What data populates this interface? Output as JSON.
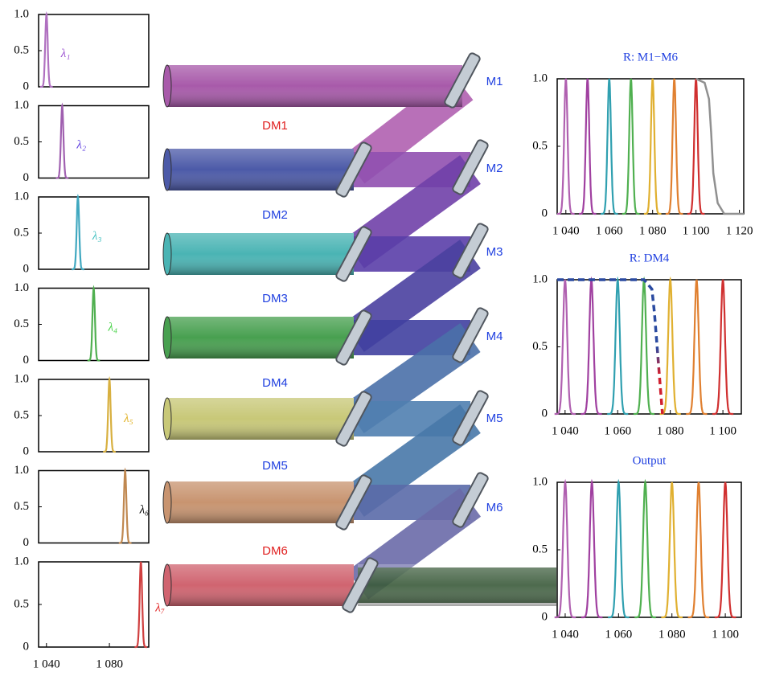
{
  "chart_data": [
    {
      "type": "peak",
      "label": "λ₁",
      "label_color": "#9a50d0",
      "color": "#b070c0",
      "peaks": [
        {
          "center": 1040
        }
      ],
      "height": 1,
      "xlim": [
        1035,
        1105
      ],
      "ylim": [
        0,
        1
      ],
      "yticks": [
        0,
        0.5,
        {
          "value": 1,
          "label": "1.0"
        }
      ]
    },
    {
      "type": "peak",
      "label": "λ₂",
      "label_color": "#6040e0",
      "color": "#a060b0",
      "peaks": [
        {
          "center": 1050
        }
      ],
      "height": 1,
      "xlim": [
        1035,
        1105
      ],
      "ylim": [
        0,
        1
      ],
      "yticks": [
        0,
        0.5,
        {
          "value": 1,
          "label": "1.0"
        }
      ]
    },
    {
      "type": "peak",
      "label": "λ₃",
      "label_color": "#40c0c0",
      "color": "#40a8c0",
      "peaks": [
        {
          "center": 1060
        }
      ],
      "height": 1,
      "xlim": [
        1035,
        1105
      ],
      "ylim": [
        0,
        1
      ],
      "yticks": [
        0,
        0.5,
        {
          "value": 1,
          "label": "1.0"
        }
      ]
    },
    {
      "type": "peak",
      "label": "λ₄",
      "label_color": "#40d040",
      "color": "#50b050",
      "peaks": [
        {
          "center": 1070
        }
      ],
      "height": 1,
      "xlim": [
        1035,
        1105
      ],
      "ylim": [
        0,
        1
      ],
      "yticks": [
        0,
        0.5,
        {
          "value": 1,
          "label": "1.0"
        }
      ]
    },
    {
      "type": "peak",
      "label": "λ₅",
      "label_color": "#e0b020",
      "color": "#d8b040",
      "peaks": [
        {
          "center": 1080
        }
      ],
      "height": 1,
      "xlim": [
        1035,
        1105
      ],
      "ylim": [
        0,
        1
      ],
      "yticks": [
        0,
        0.5,
        {
          "value": 1,
          "label": "1.0"
        }
      ]
    },
    {
      "type": "peak",
      "label": "λ₆",
      "label_color": "#000000",
      "color": "#c08850",
      "peaks": [
        {
          "center": 1090
        }
      ],
      "height": 1,
      "xlim": [
        1035,
        1105
      ],
      "ylim": [
        0,
        1
      ],
      "yticks": [
        0,
        0.5,
        {
          "value": 1,
          "label": "1.0"
        }
      ]
    },
    {
      "type": "peak",
      "label": "λ₇",
      "label_color": "#e02020",
      "color": "#d04040",
      "peaks": [
        {
          "center": 1100
        }
      ],
      "height": 1,
      "xlim": [
        1035,
        1105
      ],
      "ylim": [
        0,
        1
      ],
      "yticks": [
        0,
        0.5,
        {
          "value": 1,
          "label": "1.0"
        }
      ],
      "xticks": [
        {
          "value": 1040,
          "label": "1 040"
        },
        {
          "value": 1080,
          "label": "1 080"
        }
      ]
    },
    {
      "type": "peak",
      "title": "R: M1−M6",
      "height": 1,
      "peaks": [
        {
          "center": 1040,
          "color": "#b060b0"
        },
        {
          "center": 1050,
          "color": "#a040a0"
        },
        {
          "center": 1060,
          "color": "#30a0b0"
        },
        {
          "center": 1070,
          "color": "#50b050"
        },
        {
          "center": 1080,
          "color": "#e0b030"
        },
        {
          "center": 1090,
          "color": "#e08030"
        },
        {
          "center": 1100,
          "color": "#d03030"
        }
      ],
      "curve": {
        "color": "#909090",
        "style": "solid",
        "x": [
          1100,
          1104,
          1106,
          1107,
          1108,
          1110,
          1113,
          1122
        ],
        "values": [
          1,
          0.97,
          0.85,
          0.6,
          0.3,
          0.08,
          0,
          0
        ]
      },
      "xlim": [
        1036,
        1122
      ],
      "ylim": [
        0,
        1
      ],
      "yticks": [
        0,
        0.5,
        {
          "value": 1,
          "label": "1.0"
        }
      ],
      "xticks": [
        {
          "value": 1040,
          "label": "1 040"
        },
        {
          "value": 1060,
          "label": "1 060"
        },
        {
          "value": 1080,
          "label": "1 080"
        },
        {
          "value": 1100,
          "label": "1 100"
        },
        {
          "value": 1120,
          "label": "1 120"
        }
      ]
    },
    {
      "type": "peak",
      "title": "R: DM4",
      "height": 1,
      "peaks": [
        {
          "center": 1040,
          "color": "#b060b0"
        },
        {
          "center": 1050,
          "color": "#a040a0"
        },
        {
          "center": 1060,
          "color": "#30a0b0"
        },
        {
          "center": 1070,
          "color": "#50b050"
        },
        {
          "center": 1080,
          "color": "#e0b030"
        },
        {
          "center": 1090,
          "color": "#e08030"
        },
        {
          "center": 1100,
          "color": "#d03030"
        }
      ],
      "curve": {
        "color": "#2a4aa0",
        "color2": "#d02030",
        "style": "dashed",
        "x": [
          1037,
          1070,
          1073,
          1074,
          1075,
          1076,
          1077
        ],
        "values": [
          1,
          1,
          0.93,
          0.75,
          0.5,
          0.25,
          0
        ]
      },
      "xlim": [
        1037,
        1107
      ],
      "ylim": [
        0,
        1
      ],
      "yticks": [
        0,
        0.5,
        {
          "value": 1,
          "label": "1.0"
        }
      ],
      "xticks": [
        {
          "value": 1040,
          "label": "1 040"
        },
        {
          "value": 1060,
          "label": "1 060"
        },
        {
          "value": 1080,
          "label": "1 080"
        },
        {
          "value": 1100,
          "label": "1 100"
        }
      ]
    },
    {
      "type": "peak",
      "title": "Output",
      "height": 1,
      "peaks": [
        {
          "center": 1040,
          "color": "#b060b0"
        },
        {
          "center": 1050,
          "color": "#a040a0"
        },
        {
          "center": 1060,
          "color": "#30a0b0"
        },
        {
          "center": 1070,
          "color": "#50b050"
        },
        {
          "center": 1080,
          "color": "#e0b030"
        },
        {
          "center": 1090,
          "color": "#e08030"
        },
        {
          "center": 1100,
          "color": "#d03030"
        }
      ],
      "xlim": [
        1037,
        1106
      ],
      "ylim": [
        0,
        1
      ],
      "yticks": [
        0,
        0.5,
        {
          "value": 1,
          "label": "1.0"
        }
      ],
      "xticks": [
        {
          "value": 1040,
          "label": "1 040"
        },
        {
          "value": 1060,
          "label": "1 060"
        },
        {
          "value": 1080,
          "label": "1 080"
        },
        {
          "value": 1100,
          "label": "1 100"
        }
      ]
    }
  ],
  "diagram": {
    "mirrors": [
      "M1",
      "M2",
      "M3",
      "M4",
      "M5",
      "M6"
    ],
    "dichroics": [
      "DM1",
      "DM2",
      "DM3",
      "DM4",
      "DM5",
      "DM6"
    ]
  }
}
